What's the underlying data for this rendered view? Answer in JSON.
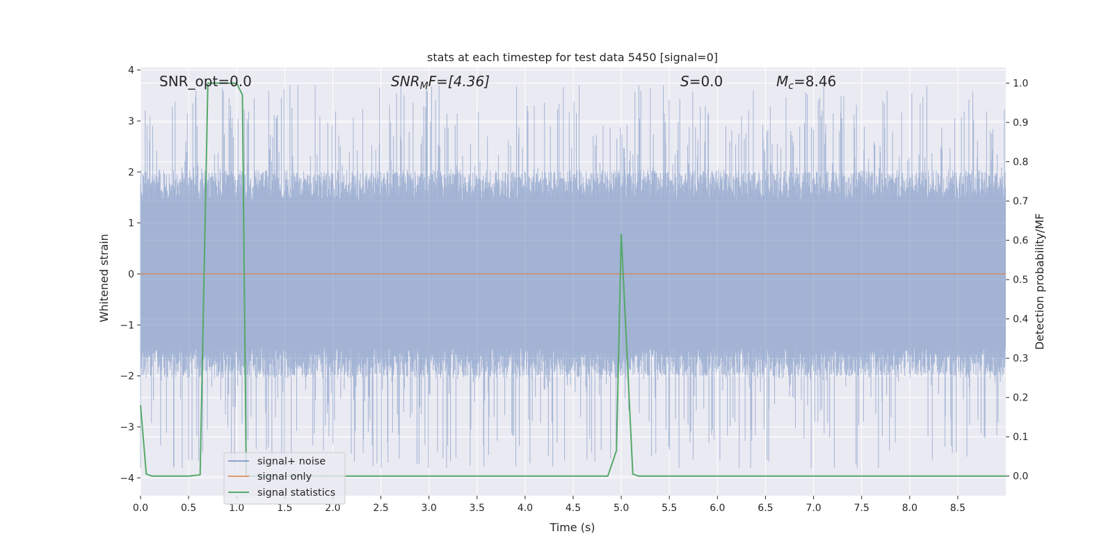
{
  "chart_data": {
    "type": "line",
    "title": "stats at each timestep for test data 5450 [signal=0]",
    "xlabel": "Time (s)",
    "ylabel_left": "Whitened strain",
    "ylabel_right": "Detection probability/MF",
    "xlim": [
      0.0,
      9.0
    ],
    "ylim_left": [
      -4.35,
      4.05
    ],
    "ylim_right": [
      -0.05,
      1.04
    ],
    "x_ticks": [
      "0.0",
      "0.5",
      "1.0",
      "1.5",
      "2.0",
      "2.5",
      "3.0",
      "3.5",
      "4.0",
      "4.5",
      "5.0",
      "5.5",
      "6.0",
      "6.5",
      "7.0",
      "7.5",
      "8.0",
      "8.5"
    ],
    "y_left_ticks": [
      "−4",
      "−3",
      "−2",
      "−1",
      "0",
      "1",
      "2",
      "3",
      "4"
    ],
    "y_right_ticks": [
      "0.0",
      "0.1",
      "0.2",
      "0.3",
      "0.4",
      "0.5",
      "0.6",
      "0.7",
      "0.8",
      "0.9",
      "1.0"
    ],
    "grid": true,
    "legend_placement": "lower-left",
    "annotations": {
      "snr_opt": "SNR_opt=0.0",
      "snr_mf_base": "SNR",
      "snr_mf_sub": "M",
      "snr_mf_rest": "F=[4.36]",
      "s_label": "S",
      "s_value": "=0.0",
      "mc_base": "M",
      "mc_sub": "c",
      "mc_value": "=8.46"
    },
    "colors": {
      "background": "#eaeaf2",
      "grid": "#ffffff",
      "noise": "#4c72b0",
      "signal_only": "#dd8452",
      "statistics": "#55a868"
    },
    "series": [
      {
        "name": "signal+ noise",
        "axis": "left",
        "kind": "noise-band",
        "description_values": {
          "typical_abs_max": 1.7,
          "peak_max": 3.7,
          "peak_min": -3.8
        }
      },
      {
        "name": "signal only",
        "axis": "left",
        "x": [
          0.0,
          9.0
        ],
        "y": [
          0.0,
          0.0
        ]
      },
      {
        "name": "signal statistics",
        "axis": "right",
        "x": [
          0.0,
          0.06,
          0.12,
          0.5,
          0.62,
          0.7,
          1.0,
          1.06,
          1.1,
          1.15,
          4.86,
          4.95,
          5.0,
          5.12,
          5.18,
          9.0
        ],
        "y": [
          0.18,
          0.005,
          0.0,
          0.0,
          0.003,
          1.0,
          1.0,
          0.97,
          0.0,
          0.0,
          0.0,
          0.065,
          0.615,
          0.005,
          0.0,
          0.0
        ]
      }
    ]
  }
}
